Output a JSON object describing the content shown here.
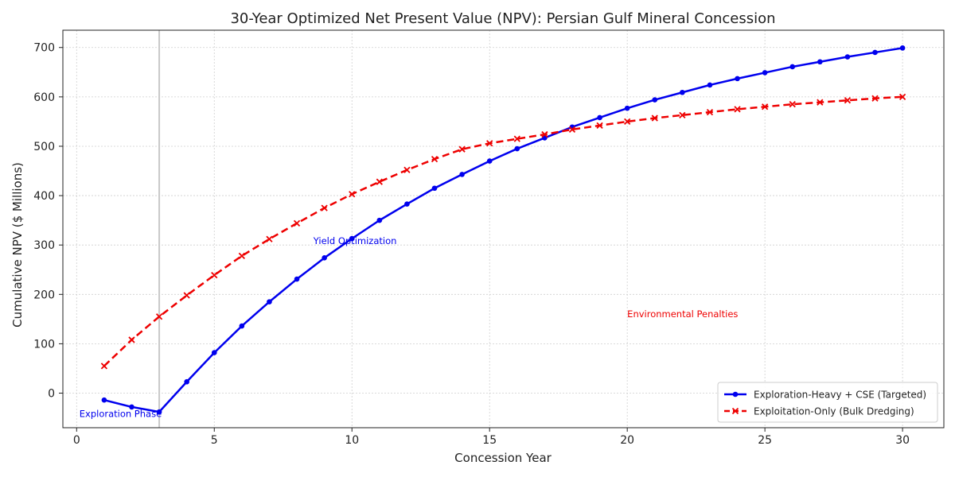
{
  "chart_data": {
    "type": "line",
    "title": "30-Year Optimized Net Present Value (NPV): Persian Gulf Mineral Concession",
    "xlabel": "Concession Year",
    "ylabel": "Cumulative NPV ($ Millions)",
    "xlim": [
      -0.5,
      31.5
    ],
    "ylim": [
      -70,
      735
    ],
    "xticks": [
      0,
      5,
      10,
      15,
      20,
      25,
      30
    ],
    "yticks": [
      0,
      100,
      200,
      300,
      400,
      500,
      600,
      700
    ],
    "grid": true,
    "legend_position": "bottom-right",
    "x": [
      1,
      2,
      3,
      4,
      5,
      6,
      7,
      8,
      9,
      10,
      11,
      12,
      13,
      14,
      15,
      16,
      17,
      18,
      19,
      20,
      21,
      22,
      23,
      24,
      25,
      26,
      27,
      28,
      29,
      30
    ],
    "series": [
      {
        "name": "Exploration-Heavy + CSE (Targeted)",
        "color": "#0000ee",
        "line_style": "solid",
        "marker": "circle",
        "values": [
          -14,
          -28,
          -38,
          23,
          82,
          136,
          185,
          231,
          274,
          313,
          350,
          383,
          415,
          443,
          470,
          495,
          517,
          539,
          558,
          577,
          594,
          609,
          624,
          637,
          649,
          661,
          671,
          681,
          690,
          699
        ]
      },
      {
        "name": "Exploitation-Only (Bulk Dredging)",
        "color": "#ee0000",
        "line_style": "dashed",
        "marker": "x",
        "values": [
          55,
          108,
          155,
          198,
          239,
          278,
          312,
          344,
          375,
          403,
          428,
          452,
          474,
          494,
          506,
          515,
          524,
          534,
          542,
          550,
          557,
          563,
          569,
          575,
          580,
          585,
          589,
          593,
          597,
          600
        ]
      }
    ],
    "vertical_line_x": 3,
    "annotations": [
      {
        "text": "Exploration Phase",
        "x": 0.1,
        "y": -48,
        "color": "#0000ee"
      },
      {
        "text": "Yield Optimization",
        "x": 8.6,
        "y": 302,
        "color": "#0000ee"
      },
      {
        "text": "Environmental Penalties",
        "x": 20.0,
        "y": 154,
        "color": "#ee0000"
      }
    ]
  }
}
